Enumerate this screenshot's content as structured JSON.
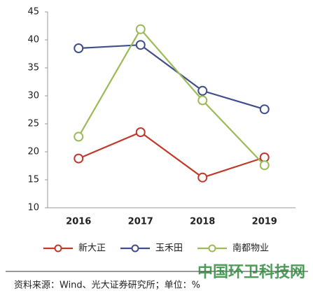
{
  "chart_data": {
    "type": "line",
    "categories": [
      "2016",
      "2017",
      "2018",
      "2019"
    ],
    "series": [
      {
        "name": "新大正",
        "color": "#c0392b",
        "values": [
          18.8,
          23.5,
          15.4,
          19.0
        ]
      },
      {
        "name": "玉禾田",
        "color": "#3f4f8c",
        "values": [
          38.5,
          39.1,
          30.9,
          27.6
        ]
      },
      {
        "name": "南都物业",
        "color": "#9bbb59",
        "values": [
          22.7,
          41.9,
          29.2,
          17.6
        ]
      }
    ],
    "ylim": [
      10,
      45
    ],
    "yticks": [
      10,
      15,
      20,
      25,
      30,
      35,
      40,
      45
    ],
    "legend": "bottom",
    "source": "资料来源：Wind、光大证券研究所；单位：%",
    "watermark": "中国环卫科技网"
  }
}
